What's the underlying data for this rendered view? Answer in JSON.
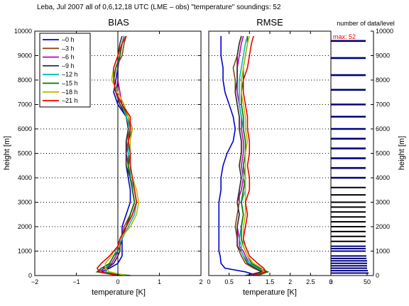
{
  "header": {
    "title": "Leba, Jul 2007  all of 0,6,12,18 UTC  (LME – obs)  \"temperature\"  soundings: 52"
  },
  "colors": {
    "series": [
      "#0000cc",
      "#8b4513",
      "#bb00bb",
      "#333333",
      "#00bbbb",
      "#007700",
      "#bbbb00",
      "#ee0000"
    ],
    "frame": "#000000",
    "counts_bar": "#000080",
    "annotation": "#ee0000"
  },
  "chart_data": [
    {
      "type": "line",
      "title": "BIAS",
      "xlabel": "temperature [K]",
      "ylabel": "height [m]",
      "xlim": [
        -2,
        2
      ],
      "ylim": [
        0,
        10000
      ],
      "xticks": [
        "-2",
        "-1",
        "0",
        "1",
        "2"
      ],
      "yticks": [
        "0",
        "1000",
        "2000",
        "3000",
        "4000",
        "5000",
        "6000",
        "7000",
        "8000",
        "9000",
        "10000"
      ],
      "grid": "horizontal dotted",
      "legend": "top-left",
      "heights": [
        0,
        150,
        300,
        500,
        800,
        1000,
        1200,
        1500,
        2000,
        2500,
        3000,
        3500,
        4000,
        4500,
        5000,
        5500,
        6000,
        6500,
        7000,
        7500,
        8000,
        8500,
        9000,
        9500,
        9800
      ],
      "series": [
        {
          "name": "–0 h",
          "values": [
            0.1,
            -0.4,
            -0.2,
            0.0,
            0.1,
            0.1,
            0.1,
            0.1,
            0.1,
            0.2,
            0.3,
            0.3,
            0.25,
            0.2,
            0.2,
            0.2,
            0.3,
            0.2,
            0.0,
            -0.1,
            -0.05,
            0.0,
            0.05,
            0.1,
            0.15
          ]
        },
        {
          "name": "–3 h",
          "values": [
            0.0,
            -0.5,
            -0.3,
            -0.1,
            0.0,
            0.05,
            0.0,
            0.1,
            0.15,
            0.3,
            0.4,
            0.35,
            0.3,
            0.25,
            0.25,
            0.2,
            0.3,
            0.25,
            0.05,
            -0.05,
            -0.1,
            -0.05,
            0.1,
            0.15,
            0.2
          ]
        },
        {
          "name": "–6 h",
          "values": [
            0.0,
            -0.4,
            -0.35,
            -0.15,
            -0.05,
            0.0,
            0.0,
            0.05,
            0.2,
            0.35,
            0.45,
            0.4,
            0.3,
            0.25,
            0.2,
            0.25,
            0.3,
            0.2,
            0.1,
            0.05,
            0.0,
            0.0,
            0.05,
            0.1,
            0.15
          ]
        },
        {
          "name": "–9 h",
          "values": [
            0.1,
            -0.3,
            -0.25,
            -0.1,
            0.0,
            0.05,
            0.05,
            0.1,
            0.2,
            0.3,
            0.4,
            0.35,
            0.3,
            0.2,
            0.2,
            0.2,
            0.25,
            0.2,
            0.05,
            -0.05,
            0.0,
            0.0,
            0.0,
            0.05,
            0.1
          ]
        },
        {
          "name": "–12 h",
          "values": [
            0.2,
            -0.3,
            -0.3,
            -0.2,
            -0.1,
            -0.05,
            0.0,
            0.1,
            0.25,
            0.4,
            0.45,
            0.4,
            0.3,
            0.3,
            0.25,
            0.25,
            0.3,
            0.2,
            0.1,
            -0.05,
            -0.1,
            -0.05,
            0.05,
            0.1,
            0.15
          ]
        },
        {
          "name": "–15 h",
          "values": [
            0.3,
            -0.5,
            -0.4,
            -0.2,
            -0.1,
            0.0,
            0.0,
            0.05,
            0.2,
            0.3,
            0.4,
            0.35,
            0.3,
            0.25,
            0.3,
            0.25,
            0.35,
            0.25,
            0.1,
            -0.05,
            -0.1,
            -0.05,
            0.05,
            0.1,
            0.2
          ]
        },
        {
          "name": "–18 h",
          "values": [
            0.2,
            -0.2,
            -0.3,
            -0.3,
            -0.15,
            -0.1,
            0.0,
            0.05,
            0.3,
            0.45,
            0.5,
            0.45,
            0.35,
            0.3,
            0.3,
            0.3,
            0.35,
            0.25,
            0.15,
            0.0,
            -0.15,
            -0.1,
            0.0,
            0.1,
            0.2
          ]
        },
        {
          "name": "–21 h",
          "values": [
            0.0,
            -0.45,
            -0.5,
            -0.4,
            -0.2,
            -0.1,
            0.0,
            0.05,
            0.2,
            0.35,
            0.45,
            0.4,
            0.35,
            0.3,
            0.3,
            0.25,
            0.3,
            0.3,
            0.1,
            -0.05,
            -0.1,
            -0.1,
            0.0,
            0.1,
            0.2
          ]
        }
      ]
    },
    {
      "type": "line",
      "title": "RMSE",
      "xlabel": "temperature [K]",
      "ylabel": "",
      "xlim": [
        0,
        3
      ],
      "ylim": [
        0,
        10000
      ],
      "xticks": [
        "0",
        "0.5",
        "1",
        "1.5",
        "2",
        "2.5",
        "3"
      ],
      "grid": "horizontal dotted",
      "heights": [
        0,
        150,
        300,
        500,
        800,
        1000,
        1200,
        1500,
        2000,
        2500,
        3000,
        3500,
        4000,
        4500,
        5000,
        5500,
        6000,
        6500,
        7000,
        7500,
        8000,
        8500,
        9000,
        9500,
        9800
      ],
      "series": [
        {
          "name": "–0 h",
          "values": [
            1.2,
            0.9,
            0.4,
            0.3,
            0.28,
            0.25,
            0.25,
            0.25,
            0.25,
            0.25,
            0.25,
            0.3,
            0.3,
            0.35,
            0.45,
            0.6,
            0.65,
            0.6,
            0.5,
            0.4,
            0.35,
            0.35,
            0.3,
            0.3,
            0.3
          ]
        },
        {
          "name": "–3 h",
          "values": [
            1.1,
            1.3,
            1.1,
            0.9,
            0.8,
            0.75,
            0.7,
            0.7,
            0.65,
            0.7,
            0.75,
            0.75,
            0.8,
            0.75,
            0.8,
            0.8,
            0.75,
            0.75,
            0.7,
            0.65,
            0.65,
            0.6,
            0.7,
            0.75,
            0.8
          ]
        },
        {
          "name": "–6 h",
          "values": [
            1.0,
            1.35,
            1.2,
            1.0,
            0.9,
            0.85,
            0.75,
            0.75,
            0.7,
            0.75,
            0.7,
            0.8,
            0.85,
            0.8,
            0.85,
            0.85,
            0.8,
            0.8,
            0.75,
            0.7,
            0.7,
            0.7,
            0.75,
            0.8,
            0.85
          ]
        },
        {
          "name": "–9 h",
          "values": [
            0.9,
            1.3,
            1.15,
            0.95,
            0.85,
            0.8,
            0.7,
            0.7,
            0.7,
            0.75,
            0.7,
            0.75,
            0.8,
            0.75,
            0.8,
            0.8,
            0.75,
            0.75,
            0.7,
            0.65,
            0.7,
            0.7,
            0.7,
            0.75,
            0.8
          ]
        },
        {
          "name": "–12 h",
          "values": [
            1.1,
            1.4,
            1.2,
            1.0,
            0.85,
            0.8,
            0.8,
            0.75,
            0.8,
            0.85,
            0.8,
            0.9,
            0.85,
            0.85,
            0.9,
            0.9,
            0.85,
            0.8,
            0.75,
            0.75,
            0.75,
            0.8,
            0.85,
            0.9,
            0.95
          ]
        },
        {
          "name": "–15 h",
          "values": [
            1.2,
            1.45,
            1.25,
            1.05,
            0.95,
            0.9,
            0.85,
            0.8,
            0.8,
            0.85,
            0.8,
            0.85,
            0.9,
            0.85,
            0.9,
            0.9,
            0.85,
            0.85,
            0.8,
            0.8,
            0.85,
            0.85,
            0.9,
            0.95,
            0.95
          ]
        },
        {
          "name": "–18 h",
          "values": [
            1.15,
            1.35,
            1.3,
            1.1,
            0.95,
            0.9,
            0.85,
            0.85,
            0.85,
            0.9,
            0.9,
            0.9,
            0.9,
            0.9,
            0.9,
            0.95,
            0.9,
            0.9,
            0.85,
            0.8,
            0.8,
            0.85,
            0.9,
            0.95,
            1.0
          ]
        },
        {
          "name": "–21 h",
          "values": [
            1.1,
            1.4,
            1.35,
            1.2,
            1.0,
            0.95,
            0.9,
            0.85,
            0.9,
            0.95,
            0.9,
            1.0,
            1.0,
            0.95,
            1.0,
            1.0,
            0.95,
            0.95,
            0.9,
            0.85,
            0.85,
            0.95,
            1.0,
            1.05,
            1.1
          ]
        }
      ]
    },
    {
      "type": "bar",
      "title": "number of data/level",
      "ylabel": "height [m]",
      "xlim": [
        0,
        50
      ],
      "xticks": [
        "0",
        "50"
      ],
      "ylim": [
        0,
        10000
      ],
      "annotation": "max: 52",
      "levels": [
        100,
        200,
        300,
        400,
        500,
        600,
        700,
        800,
        1000,
        1100,
        1200,
        1400,
        1600,
        1800,
        2000,
        2200,
        2400,
        2600,
        2800,
        3000,
        3300,
        3600,
        4000,
        4400,
        4800,
        5200,
        5600,
        6000,
        6500,
        7000,
        7600,
        8200,
        8900,
        9600
      ],
      "values": [
        52,
        51,
        50,
        50,
        50,
        50,
        49,
        49,
        48,
        48,
        48,
        48,
        48,
        48,
        48,
        48,
        48,
        48,
        48,
        48,
        48,
        48,
        48,
        48,
        48,
        48,
        48,
        48,
        48,
        48,
        48,
        48,
        48,
        48
      ]
    }
  ]
}
